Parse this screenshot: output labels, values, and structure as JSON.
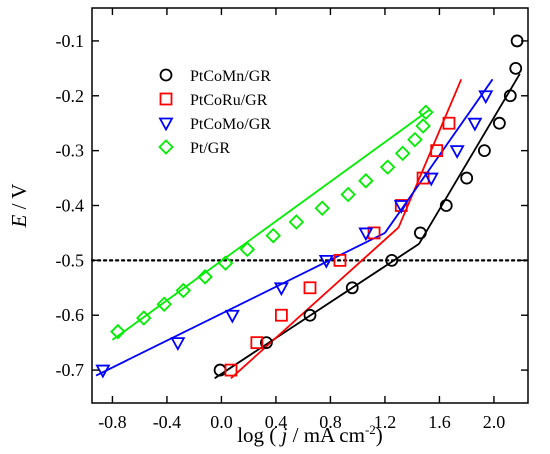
{
  "chart_data": {
    "type": "scatter",
    "title": "",
    "xlabel": {
      "prefix": "log ( ",
      "italic": "j",
      "middle": " / mA cm",
      "sup": "-2",
      "suffix": ")"
    },
    "ylabel": {
      "italic": "E",
      "suffix": " / V"
    },
    "xlim": [
      -0.95,
      2.25
    ],
    "ylim": [
      -0.76,
      -0.04
    ],
    "xticks": [
      -0.8,
      -0.4,
      0.0,
      0.4,
      0.8,
      1.2,
      1.6,
      2.0
    ],
    "xtick_labels": [
      "-0.8",
      "-0.4",
      "0.0",
      "0.4",
      "0.8",
      "1.2",
      "1.6",
      "2.0"
    ],
    "yticks": [
      -0.7,
      -0.6,
      -0.5,
      -0.4,
      -0.3,
      -0.2,
      -0.1
    ],
    "ytick_labels": [
      "-0.7",
      "-0.6",
      "-0.5",
      "-0.4",
      "-0.3",
      "-0.2",
      "-0.1"
    ],
    "grid": false,
    "legend_position": "top-left",
    "reference_line": {
      "y": -0.5,
      "style": "dotted",
      "color": "#000000"
    },
    "series": [
      {
        "name": "PtCoMn/GR",
        "color": "#000000",
        "marker": "circle",
        "points": [
          {
            "x": -0.01,
            "y": -0.7
          },
          {
            "x": 0.33,
            "y": -0.65
          },
          {
            "x": 0.65,
            "y": -0.6
          },
          {
            "x": 0.96,
            "y": -0.55
          },
          {
            "x": 1.25,
            "y": -0.5
          },
          {
            "x": 1.46,
            "y": -0.45
          },
          {
            "x": 1.65,
            "y": -0.4
          },
          {
            "x": 1.8,
            "y": -0.35
          },
          {
            "x": 1.93,
            "y": -0.3
          },
          {
            "x": 2.04,
            "y": -0.25
          },
          {
            "x": 2.12,
            "y": -0.2
          },
          {
            "x": 2.16,
            "y": -0.15
          },
          {
            "x": 2.17,
            "y": -0.1
          }
        ],
        "fits": [
          [
            {
              "x": -0.05,
              "y": -0.715
            },
            {
              "x": 1.45,
              "y": -0.47
            }
          ],
          [
            {
              "x": 1.45,
              "y": -0.47
            },
            {
              "x": 2.19,
              "y": -0.16
            }
          ]
        ]
      },
      {
        "name": "PtCoRu/GR",
        "color": "#ff0000",
        "marker": "square",
        "points": [
          {
            "x": 0.07,
            "y": -0.7
          },
          {
            "x": 0.26,
            "y": -0.65
          },
          {
            "x": 0.44,
            "y": -0.6
          },
          {
            "x": 0.65,
            "y": -0.55
          },
          {
            "x": 0.87,
            "y": -0.5
          },
          {
            "x": 1.12,
            "y": -0.45
          },
          {
            "x": 1.32,
            "y": -0.4
          },
          {
            "x": 1.48,
            "y": -0.35
          },
          {
            "x": 1.58,
            "y": -0.3
          },
          {
            "x": 1.67,
            "y": -0.25
          }
        ],
        "fits": [
          [
            {
              "x": 0.07,
              "y": -0.715
            },
            {
              "x": 1.3,
              "y": -0.44
            }
          ],
          [
            {
              "x": 1.3,
              "y": -0.44
            },
            {
              "x": 1.76,
              "y": -0.17
            }
          ]
        ]
      },
      {
        "name": "PtCoMo/GR",
        "color": "#0000ff",
        "marker": "triangle-down",
        "points": [
          {
            "x": -0.87,
            "y": -0.7
          },
          {
            "x": -0.32,
            "y": -0.65
          },
          {
            "x": 0.08,
            "y": -0.6
          },
          {
            "x": 0.44,
            "y": -0.55
          },
          {
            "x": 0.77,
            "y": -0.5
          },
          {
            "x": 1.06,
            "y": -0.45
          },
          {
            "x": 1.32,
            "y": -0.4
          },
          {
            "x": 1.54,
            "y": -0.35
          },
          {
            "x": 1.73,
            "y": -0.3
          },
          {
            "x": 1.86,
            "y": -0.25
          },
          {
            "x": 1.94,
            "y": -0.2
          }
        ],
        "fits": [
          [
            {
              "x": -0.92,
              "y": -0.71
            },
            {
              "x": 1.2,
              "y": -0.45
            }
          ],
          [
            {
              "x": 1.2,
              "y": -0.45
            },
            {
              "x": 1.99,
              "y": -0.17
            }
          ]
        ]
      },
      {
        "name": "Pt/GR",
        "color": "#00ee00",
        "marker": "diamond",
        "points": [
          {
            "x": -0.76,
            "y": -0.63
          },
          {
            "x": -0.57,
            "y": -0.605
          },
          {
            "x": -0.42,
            "y": -0.58
          },
          {
            "x": -0.28,
            "y": -0.555
          },
          {
            "x": -0.12,
            "y": -0.53
          },
          {
            "x": 0.03,
            "y": -0.505
          },
          {
            "x": 0.19,
            "y": -0.48
          },
          {
            "x": 0.38,
            "y": -0.455
          },
          {
            "x": 0.55,
            "y": -0.43
          },
          {
            "x": 0.74,
            "y": -0.405
          },
          {
            "x": 0.93,
            "y": -0.38
          },
          {
            "x": 1.06,
            "y": -0.355
          },
          {
            "x": 1.22,
            "y": -0.33
          },
          {
            "x": 1.33,
            "y": -0.305
          },
          {
            "x": 1.42,
            "y": -0.28
          },
          {
            "x": 1.48,
            "y": -0.255
          },
          {
            "x": 1.5,
            "y": -0.23
          }
        ],
        "fits": [
          [
            {
              "x": -0.8,
              "y": -0.645
            },
            {
              "x": 1.53,
              "y": -0.225
            }
          ]
        ]
      }
    ]
  }
}
